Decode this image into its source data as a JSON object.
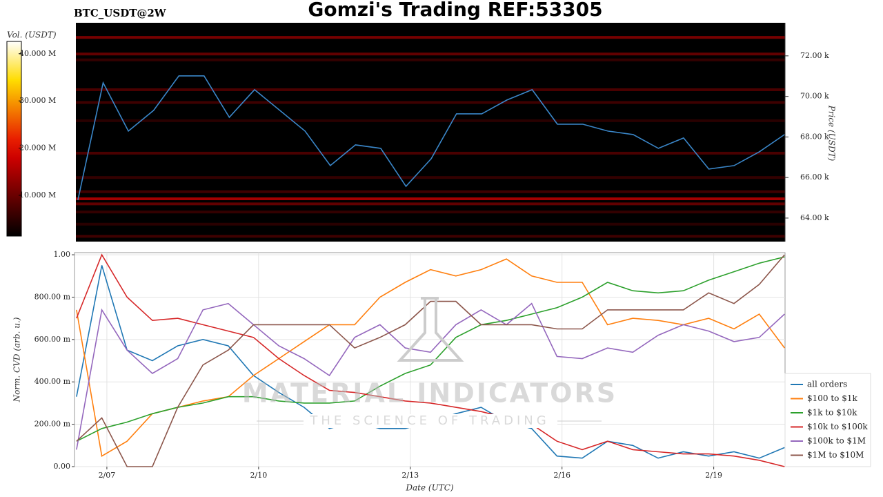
{
  "watermark": {
    "title": "MATERIAL INDICATORS",
    "subtitle": "THE SCIENCE OF TRADING"
  },
  "chart_data": [
    {
      "type": "heatmap",
      "title": "Gomzi's Trading REF:53305",
      "subtitle": "BTC_USDT@2W",
      "x": [
        6.4,
        6.9,
        7.4,
        7.9,
        8.4,
        8.9,
        9.4,
        9.9,
        10.4,
        10.9,
        11.4,
        11.9,
        12.4,
        12.9,
        13.4,
        13.9,
        14.4,
        14.9,
        15.4,
        15.9,
        16.4,
        16.9,
        17.4,
        17.9,
        18.4,
        18.9,
        19.4,
        19.9,
        20.4
      ],
      "xlim": [
        6.36,
        20.41
      ],
      "price": {
        "color": "#3a86c8",
        "values": [
          64885,
          70672,
          68290,
          69311,
          71013,
          71013,
          68970,
          70332,
          69311,
          68290,
          66588,
          67609,
          67439,
          65567,
          66928,
          69141,
          69141,
          69821,
          70332,
          68630,
          68630,
          68290,
          68120,
          67439,
          67949,
          66418,
          66588,
          67268,
          68120
        ]
      },
      "ylabel": "Price (USDT)",
      "ylim": [
        62840,
        73630
      ],
      "yticks": [
        {
          "value": 64000,
          "label": "64.00 k"
        },
        {
          "value": 66000,
          "label": "66.00 k"
        },
        {
          "value": 68000,
          "label": "68.00 k"
        },
        {
          "value": 70000,
          "label": "70.00 k"
        },
        {
          "value": 72000,
          "label": "72.00 k"
        }
      ],
      "heatmap": {
        "levels": [
          72910,
          72090,
          71800,
          70330,
          69700,
          68800,
          67200,
          66000,
          65300,
          64950,
          64700,
          64300,
          63700,
          63100
        ],
        "volumes": [
          12000000,
          10000000,
          6000000,
          8000000,
          7000000,
          5000000,
          8000000,
          6000000,
          7000000,
          16000000,
          10000000,
          6000000,
          5000000,
          7000000
        ]
      },
      "colorbar": {
        "label": "Vol. (USDT)",
        "lim": [
          1360000,
          42600000
        ],
        "ticks": [
          {
            "value": 10000000,
            "label": "10.000 M"
          },
          {
            "value": 20000000,
            "label": "20.000 M"
          },
          {
            "value": 30000000,
            "label": "30.000 M"
          },
          {
            "value": 40000000,
            "label": "40.000 M"
          }
        ]
      }
    },
    {
      "type": "line",
      "xlabel": "Date (UTC)",
      "ylabel": "Norm. CVD (arb. u.)",
      "x": [
        6.4,
        6.9,
        7.4,
        7.9,
        8.4,
        8.9,
        9.4,
        9.9,
        10.4,
        10.9,
        11.4,
        11.9,
        12.4,
        12.9,
        13.4,
        13.9,
        14.4,
        14.9,
        15.4,
        15.9,
        16.4,
        16.9,
        17.4,
        17.9,
        18.4,
        18.9,
        19.4,
        19.9,
        20.4
      ],
      "xlim": [
        6.36,
        20.41
      ],
      "xticks": [
        {
          "value": 7,
          "label": "2/07"
        },
        {
          "value": 10,
          "label": "2/10"
        },
        {
          "value": 13,
          "label": "2/13"
        },
        {
          "value": 16,
          "label": "2/16"
        },
        {
          "value": 19,
          "label": "2/19"
        }
      ],
      "ylim": [
        0,
        1.01
      ],
      "yticks": [
        {
          "value": 0,
          "label": "0.00"
        },
        {
          "value": 0.2,
          "label": "200.00 m"
        },
        {
          "value": 0.4,
          "label": "400.00 m"
        },
        {
          "value": 0.6,
          "label": "600.00 m"
        },
        {
          "value": 0.8,
          "label": "800.00 m"
        },
        {
          "value": 1,
          "label": "1.00"
        }
      ],
      "grid": true,
      "legend": "lower right",
      "series": [
        {
          "name": "all orders",
          "color": "#1f77b4",
          "values": [
            0.33,
            0.95,
            0.55,
            0.5,
            0.57,
            0.6,
            0.57,
            0.43,
            0.35,
            0.28,
            0.18,
            0.21,
            0.18,
            0.18,
            0.21,
            0.25,
            0.28,
            0.21,
            0.18,
            0.05,
            0.04,
            0.12,
            0.1,
            0.04,
            0.07,
            0.05,
            0.07,
            0.04,
            0.09
          ]
        },
        {
          "name": "$100 to $1k",
          "color": "#ff7f0e",
          "values": [
            0.74,
            0.05,
            0.12,
            0.25,
            0.28,
            0.31,
            0.33,
            0.43,
            0.51,
            0.59,
            0.67,
            0.67,
            0.8,
            0.87,
            0.93,
            0.9,
            0.93,
            0.98,
            0.9,
            0.87,
            0.87,
            0.67,
            0.7,
            0.69,
            0.67,
            0.7,
            0.65,
            0.72,
            0.56
          ]
        },
        {
          "name": "$1k to $10k",
          "color": "#2ca02c",
          "values": [
            0.12,
            0.18,
            0.21,
            0.25,
            0.28,
            0.3,
            0.33,
            0.33,
            0.31,
            0.3,
            0.3,
            0.31,
            0.38,
            0.44,
            0.48,
            0.61,
            0.67,
            0.69,
            0.72,
            0.75,
            0.8,
            0.87,
            0.83,
            0.82,
            0.83,
            0.88,
            0.92,
            0.96,
            0.99
          ]
        },
        {
          "name": "$10k to $100k",
          "color": "#d62728",
          "values": [
            0.7,
            1.0,
            0.8,
            0.69,
            0.7,
            0.67,
            0.64,
            0.61,
            0.51,
            0.43,
            0.36,
            0.35,
            0.33,
            0.31,
            0.3,
            0.28,
            0.26,
            0.23,
            0.2,
            0.12,
            0.08,
            0.12,
            0.08,
            0.07,
            0.06,
            0.06,
            0.05,
            0.03,
            0.0
          ]
        },
        {
          "name": "$100k to $1M",
          "color": "#9467bd",
          "values": [
            0.08,
            0.74,
            0.55,
            0.44,
            0.51,
            0.74,
            0.77,
            0.67,
            0.57,
            0.51,
            0.43,
            0.61,
            0.67,
            0.56,
            0.54,
            0.67,
            0.74,
            0.67,
            0.77,
            0.52,
            0.51,
            0.56,
            0.54,
            0.62,
            0.67,
            0.64,
            0.59,
            0.61,
            0.72
          ]
        },
        {
          "name": "$1M to $10M",
          "color": "#8c564b",
          "values": [
            0.12,
            0.23,
            0,
            0,
            0.28,
            0.48,
            0.55,
            0.67,
            0.67,
            0.67,
            0.67,
            0.56,
            0.61,
            0.67,
            0.78,
            0.78,
            0.67,
            0.67,
            0.67,
            0.65,
            0.65,
            0.74,
            0.74,
            0.74,
            0.74,
            0.82,
            0.77,
            0.86,
            1.0
          ]
        }
      ]
    }
  ]
}
